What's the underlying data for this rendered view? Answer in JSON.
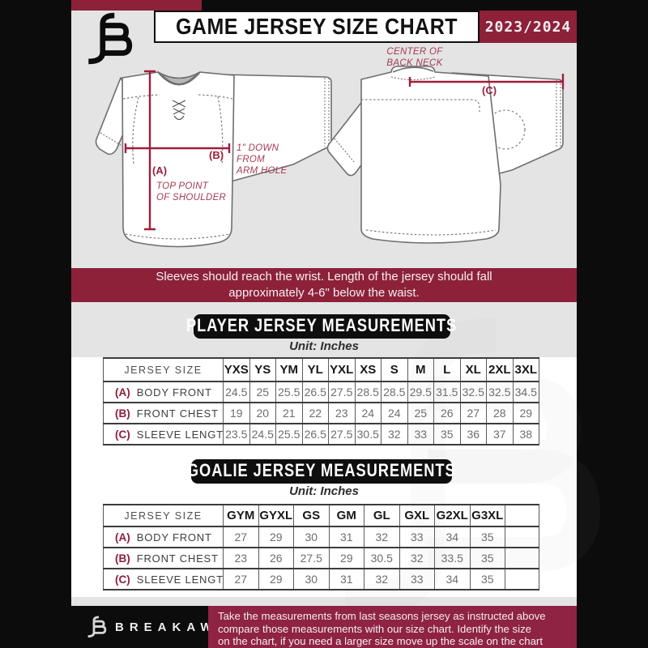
{
  "colors": {
    "maroon": "#8C2139",
    "measure_line": "#A01E3C",
    "footer_maroon": "#8E2343",
    "frame_black": "#0C0C0C",
    "page_gray": "#E4E4E5"
  },
  "header": {
    "title": "GAME JERSEY SIZE CHART",
    "season": "2023/2024"
  },
  "diagram": {
    "front": {
      "label_a": "(A)",
      "label_b": "(B)",
      "note_a_lines": [
        "TOP POINT",
        "OF SHOULDER"
      ],
      "note_b_lines": [
        "1\" DOWN",
        "FROM",
        "ARM HOLE"
      ]
    },
    "back": {
      "label_c": "(C)",
      "note_c_lines": [
        "CENTER OF",
        "BACK NECK"
      ]
    }
  },
  "banner": {
    "lines": [
      "Sleeves should reach the wrist. Length of the jersey should fall",
      "approximately 4-6\" below the waist."
    ]
  },
  "player": {
    "id": "player",
    "title": "PLAYER JERSEY MEASUREMENTS",
    "unit": "Unit: Inches",
    "size_header": "JERSEY SIZE",
    "sizes": [
      "YXS",
      "YS",
      "YM",
      "YL",
      "YXL",
      "XS",
      "S",
      "M",
      "L",
      "XL",
      "2XL",
      "3XL"
    ],
    "rows": [
      {
        "key": "(A)",
        "label": "BODY FRONT",
        "values": [
          "24.5",
          "25",
          "25.5",
          "26.5",
          "27.5",
          "28.5",
          "28.5",
          "29.5",
          "31.5",
          "32.5",
          "32.5",
          "34.5"
        ]
      },
      {
        "key": "(B)",
        "label": "FRONT CHEST",
        "values": [
          "19",
          "20",
          "21",
          "22",
          "23",
          "24",
          "24",
          "25",
          "26",
          "27",
          "28",
          "29"
        ]
      },
      {
        "key": "(C)",
        "label": "SLEEVE LENGTH",
        "values": [
          "23.5",
          "24.5",
          "25.5",
          "26.5",
          "27.5",
          "30.5",
          "32",
          "33",
          "35",
          "36",
          "37",
          "38"
        ]
      }
    ],
    "trailing_empty": false
  },
  "goalie": {
    "id": "goalie",
    "title": "GOALIE JERSEY MEASUREMENTS",
    "unit": "Unit: Inches",
    "size_header": "JERSEY SIZE",
    "sizes": [
      "GYM",
      "GYXL",
      "GS",
      "GM",
      "GL",
      "GXL",
      "G2XL",
      "G3XL"
    ],
    "rows": [
      {
        "key": "(A)",
        "label": "BODY FRONT",
        "values": [
          "27",
          "29",
          "30",
          "31",
          "32",
          "33",
          "34",
          "35"
        ]
      },
      {
        "key": "(B)",
        "label": "FRONT CHEST",
        "values": [
          "23",
          "26",
          "27.5",
          "29",
          "30.5",
          "32",
          "33.5",
          "35"
        ]
      },
      {
        "key": "(C)",
        "label": "SLEEVE LENGTH",
        "values": [
          "27",
          "29",
          "30",
          "31",
          "32",
          "33",
          "34",
          "35"
        ]
      }
    ],
    "trailing_empty": true
  },
  "footer": {
    "brand": "BREAKAWAY",
    "lines": [
      "Take the measurements from last seasons jersey as instructed above",
      "compare those measurements  with our size chart. Identify the size",
      "on the chart, if you need a larger size move up the scale on the chart"
    ]
  }
}
